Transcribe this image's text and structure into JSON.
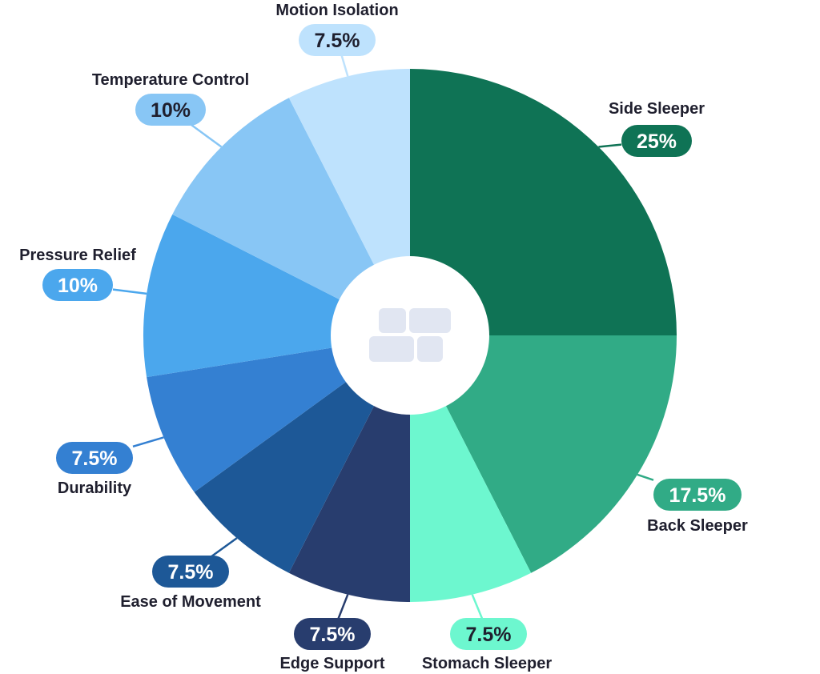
{
  "chart_data": {
    "type": "pie",
    "style": "donut",
    "start_angle_deg": 0,
    "direction": "clockwise",
    "slices": [
      {
        "label": "Side Sleeper",
        "value": 25,
        "value_label": "25%",
        "color": "#0f7355",
        "pill_text_color": "#ffffff"
      },
      {
        "label": "Back Sleeper",
        "value": 17.5,
        "value_label": "17.5%",
        "color": "#31ab86",
        "pill_text_color": "#ffffff"
      },
      {
        "label": "Stomach Sleeper",
        "value": 7.5,
        "value_label": "7.5%",
        "color": "#6df7cf",
        "pill_text_color": "#1f1f2e"
      },
      {
        "label": "Edge Support",
        "value": 7.5,
        "value_label": "7.5%",
        "color": "#283d6e",
        "pill_text_color": "#ffffff"
      },
      {
        "label": "Ease of Movement",
        "value": 7.5,
        "value_label": "7.5%",
        "color": "#1d5897",
        "pill_text_color": "#ffffff"
      },
      {
        "label": "Durability",
        "value": 7.5,
        "value_label": "7.5%",
        "color": "#3480d2",
        "pill_text_color": "#ffffff"
      },
      {
        "label": "Pressure Relief",
        "value": 10,
        "value_label": "10%",
        "color": "#4ba7ed",
        "pill_text_color": "#ffffff"
      },
      {
        "label": "Temperature Control",
        "value": 10,
        "value_label": "10%",
        "color": "#88c6f5",
        "pill_text_color": "#1f1f2e"
      },
      {
        "label": "Motion Isolation",
        "value": 7.5,
        "value_label": "7.5%",
        "color": "#bee2fd",
        "pill_text_color": "#1f1f2e"
      }
    ]
  },
  "center_icon": "bed-mattress-icon",
  "center_icon_color": "#e1e6f2"
}
